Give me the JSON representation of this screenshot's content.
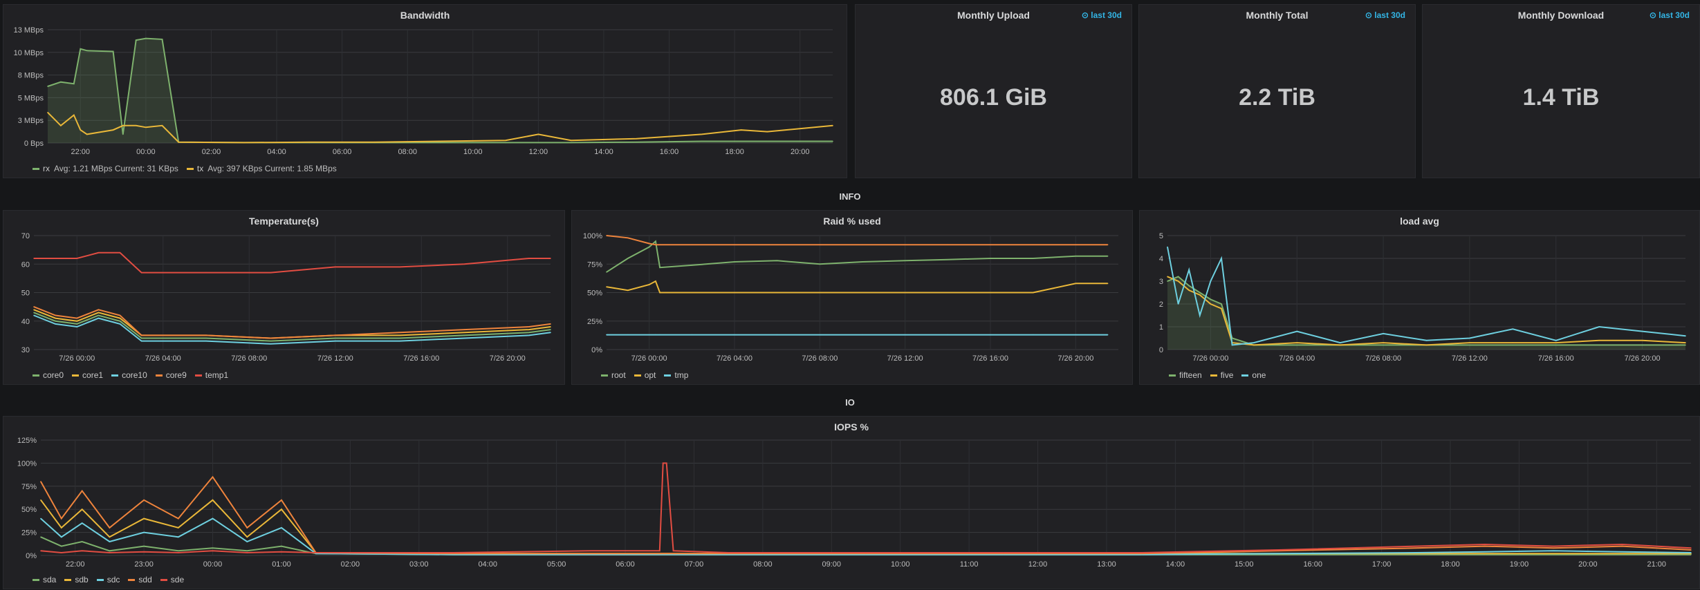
{
  "panels": {
    "bandwidth": {
      "title": "Bandwidth"
    },
    "monthly_upload": {
      "title": "Monthly Upload",
      "badge": "last 30d",
      "value": "806.1 GiB"
    },
    "monthly_total": {
      "title": "Monthly Total",
      "badge": "last 30d",
      "value": "2.2 TiB"
    },
    "monthly_download": {
      "title": "Monthly Download",
      "badge": "last 30d",
      "value": "1.4 TiB"
    },
    "temperature": {
      "title": "Temperature(s)"
    },
    "raid": {
      "title": "Raid % used"
    },
    "load": {
      "title": "load avg"
    },
    "iops": {
      "title": "IOPS %"
    }
  },
  "rows": {
    "info": "INFO",
    "io": "IO"
  },
  "colors": {
    "green": "#7eb26d",
    "yellow": "#eab839",
    "cyan": "#6ed0e0",
    "orange": "#ef843c",
    "red": "#e24d42",
    "accent": "#33b5e5"
  },
  "icons": {
    "badge": "clock-icon"
  },
  "chart_data": [
    {
      "id": "bandwidth",
      "type": "line",
      "title": "Bandwidth",
      "y_ticks": [
        "13 MBps",
        "10 MBps",
        "8 MBps",
        "5 MBps",
        "3 MBps",
        "0 Bps"
      ],
      "x_ticks": [
        "22:00",
        "00:00",
        "02:00",
        "04:00",
        "06:00",
        "08:00",
        "10:00",
        "12:00",
        "14:00",
        "16:00",
        "18:00",
        "20:00"
      ],
      "x": [
        0,
        0.4,
        0.8,
        1.0,
        1.2,
        2.0,
        2.3,
        2.7,
        3.0,
        3.5,
        4.0,
        6,
        8,
        10,
        12,
        14,
        15.0,
        16,
        18,
        20,
        21.2,
        22,
        24
      ],
      "ylim": [
        0,
        13
      ],
      "series": [
        {
          "name": "rx",
          "legend_extra": "Avg: 1.21 MBps  Current: 31 KBps",
          "color": "#7eb26d",
          "fill": true,
          "values": [
            6.5,
            7,
            6.8,
            10.8,
            10.6,
            10.5,
            1.0,
            11.8,
            12.0,
            11.9,
            0.1,
            0.05,
            0.05,
            0.05,
            0.05,
            0.05,
            0.05,
            0.05,
            0.1,
            0.2,
            0.2,
            0.2,
            0.2
          ]
        },
        {
          "name": "tx",
          "legend_extra": "Avg: 397 KBps  Current: 1.85 MBps",
          "color": "#eab839",
          "fill": false,
          "values": [
            3.5,
            2.0,
            3.2,
            1.5,
            1.0,
            1.5,
            2.0,
            2.0,
            1.8,
            2.0,
            0.1,
            0.05,
            0.1,
            0.1,
            0.2,
            0.3,
            1.0,
            0.3,
            0.5,
            1.0,
            1.5,
            1.3,
            2.0
          ]
        }
      ]
    },
    {
      "id": "temperature",
      "type": "line",
      "title": "Temperature(s)",
      "y_ticks": [
        "70",
        "60",
        "50",
        "40",
        "30"
      ],
      "ylim": [
        30,
        70
      ],
      "x_ticks": [
        "7/26 00:00",
        "7/26 04:00",
        "7/26 08:00",
        "7/26 12:00",
        "7/26 16:00",
        "7/26 20:00"
      ],
      "x": [
        0,
        1,
        2,
        3,
        4,
        5,
        8,
        11,
        14,
        17,
        20,
        23,
        24
      ],
      "series": [
        {
          "name": "core0",
          "color": "#7eb26d",
          "values": [
            43,
            40,
            39,
            42,
            40,
            34,
            34,
            33,
            34,
            34,
            35,
            36,
            37
          ]
        },
        {
          "name": "core1",
          "color": "#eab839",
          "values": [
            44,
            41,
            40,
            43,
            41,
            35,
            35,
            34,
            35,
            35,
            36,
            37,
            38
          ]
        },
        {
          "name": "core10",
          "color": "#6ed0e0",
          "values": [
            42,
            39,
            38,
            41,
            39,
            33,
            33,
            32,
            33,
            33,
            34,
            35,
            36
          ]
        },
        {
          "name": "core9",
          "color": "#ef843c",
          "values": [
            45,
            42,
            41,
            44,
            42,
            35,
            35,
            34,
            35,
            36,
            37,
            38,
            39
          ]
        },
        {
          "name": "temp1",
          "color": "#e24d42",
          "values": [
            62,
            62,
            62,
            64,
            64,
            57,
            57,
            57,
            59,
            59,
            60,
            62,
            62
          ]
        }
      ]
    },
    {
      "id": "raid",
      "type": "line",
      "title": "Raid % used",
      "y_ticks": [
        "100%",
        "75%",
        "50%",
        "25%",
        "0%"
      ],
      "ylim": [
        0,
        100
      ],
      "x_ticks": [
        "7/26 00:00",
        "7/26 04:00",
        "7/26 08:00",
        "7/26 12:00",
        "7/26 16:00",
        "7/26 20:00"
      ],
      "x": [
        0,
        1,
        2,
        2.3,
        2.5,
        4,
        6,
        8,
        10,
        12,
        14,
        16,
        18,
        20,
        22,
        23.5
      ],
      "series": [
        {
          "name": "root",
          "color": "#7eb26d",
          "values": [
            68,
            80,
            90,
            95,
            72,
            74,
            77,
            78,
            75,
            77,
            78,
            79,
            80,
            80,
            82,
            82
          ]
        },
        {
          "name": "opt",
          "color": "#eab839",
          "values": [
            55,
            52,
            57,
            60,
            50,
            50,
            50,
            50,
            50,
            50,
            50,
            50,
            50,
            50,
            58,
            58
          ]
        },
        {
          "name": "tmp",
          "color": "#6ed0e0",
          "values": [
            13,
            13,
            13,
            13,
            13,
            13,
            13,
            13,
            13,
            13,
            13,
            13,
            13,
            13,
            13,
            13
          ]
        },
        {
          "name": "",
          "color": "#ef843c",
          "values": [
            100,
            98,
            93,
            92,
            92,
            92,
            92,
            92,
            92,
            92,
            92,
            92,
            92,
            92,
            92,
            92
          ]
        }
      ]
    },
    {
      "id": "load",
      "type": "line",
      "title": "load avg",
      "y_ticks": [
        "5",
        "4",
        "3",
        "2",
        "1",
        "0"
      ],
      "ylim": [
        0,
        5
      ],
      "x_ticks": [
        "7/26 00:00",
        "7/26 04:00",
        "7/26 08:00",
        "7/26 12:00",
        "7/26 16:00",
        "7/26 20:00"
      ],
      "x": [
        0,
        0.5,
        1,
        1.5,
        2,
        2.5,
        3,
        4,
        6,
        8,
        10,
        12,
        14,
        16,
        18,
        20,
        22,
        24
      ],
      "series": [
        {
          "name": "fifteen",
          "color": "#7eb26d",
          "fill": true,
          "values": [
            3.0,
            3.2,
            2.8,
            2.5,
            2.2,
            2.0,
            0.5,
            0.2,
            0.2,
            0.2,
            0.2,
            0.2,
            0.2,
            0.2,
            0.2,
            0.2,
            0.2,
            0.2
          ]
        },
        {
          "name": "five",
          "color": "#eab839",
          "values": [
            3.2,
            3.0,
            2.6,
            2.4,
            2.0,
            1.8,
            0.3,
            0.2,
            0.3,
            0.2,
            0.3,
            0.2,
            0.3,
            0.3,
            0.3,
            0.4,
            0.4,
            0.3
          ]
        },
        {
          "name": "one",
          "color": "#6ed0e0",
          "values": [
            4.5,
            2.0,
            3.5,
            1.5,
            3.0,
            4.0,
            0.2,
            0.3,
            0.8,
            0.3,
            0.7,
            0.4,
            0.5,
            0.9,
            0.4,
            1.0,
            0.8,
            0.6
          ]
        }
      ]
    },
    {
      "id": "iops",
      "type": "line",
      "title": "IOPS %",
      "y_ticks": [
        "125%",
        "100%",
        "75%",
        "50%",
        "25%",
        "0%"
      ],
      "ylim": [
        0,
        125
      ],
      "x_ticks": [
        "22:00",
        "23:00",
        "00:00",
        "01:00",
        "02:00",
        "03:00",
        "04:00",
        "05:00",
        "06:00",
        "07:00",
        "08:00",
        "09:00",
        "10:00",
        "11:00",
        "12:00",
        "13:00",
        "14:00",
        "15:00",
        "16:00",
        "17:00",
        "18:00",
        "19:00",
        "20:00",
        "21:00"
      ],
      "x": [
        0,
        0.3,
        0.6,
        1.0,
        1.5,
        2.0,
        2.5,
        3.0,
        3.5,
        4.0,
        6,
        8,
        9.0,
        9.05,
        9.1,
        9.2,
        10,
        12,
        14,
        16,
        18,
        20,
        21,
        22,
        23,
        24
      ],
      "series": [
        {
          "name": "sda",
          "color": "#7eb26d",
          "values": [
            20,
            10,
            15,
            5,
            10,
            5,
            8,
            5,
            10,
            2,
            1,
            1,
            1,
            1,
            1,
            1,
            1,
            1,
            1,
            1,
            1,
            1,
            1,
            1,
            1,
            1
          ]
        },
        {
          "name": "sdb",
          "color": "#eab839",
          "values": [
            60,
            30,
            50,
            20,
            40,
            30,
            60,
            20,
            50,
            3,
            2,
            2,
            2,
            2,
            2,
            2,
            2,
            2,
            2,
            2,
            2,
            2,
            2,
            2,
            2,
            2
          ]
        },
        {
          "name": "sdc",
          "color": "#6ed0e0",
          "values": [
            40,
            20,
            35,
            15,
            25,
            20,
            40,
            15,
            30,
            2,
            1,
            1,
            1,
            1,
            1,
            1,
            1,
            1,
            1,
            1,
            2,
            3,
            4,
            5,
            4,
            3
          ]
        },
        {
          "name": "sdd",
          "color": "#ef843c",
          "values": [
            80,
            40,
            70,
            30,
            60,
            40,
            85,
            30,
            60,
            3,
            2,
            2,
            2,
            2,
            2,
            2,
            2,
            2,
            2,
            2,
            5,
            8,
            10,
            8,
            10,
            6
          ]
        },
        {
          "name": "sde",
          "color": "#e24d42",
          "values": [
            5,
            3,
            5,
            3,
            4,
            3,
            5,
            3,
            4,
            3,
            3,
            5,
            5,
            100,
            100,
            5,
            3,
            3,
            3,
            3,
            6,
            10,
            12,
            10,
            12,
            8
          ]
        }
      ]
    }
  ]
}
